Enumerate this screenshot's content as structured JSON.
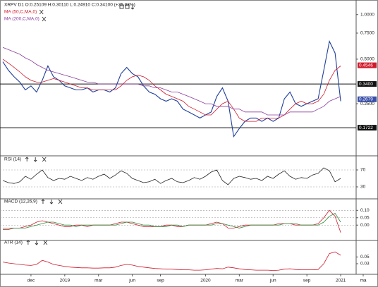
{
  "chart_data": [
    {
      "type": "line",
      "title": "XRPV D1 O:0.25109 H:0.30110 L:0.24910 C:0.34100 (+35.08%)",
      "log_scale": true,
      "ylim": [
        0.12,
        1.15
      ],
      "yticks": [
        {
          "value": 1,
          "label": "1.0000"
        },
        {
          "value": 0.75,
          "label": "0.7500"
        },
        {
          "value": 0.5,
          "label": "0.5000"
        },
        {
          "value": 0.25,
          "label": "0.2500"
        }
      ],
      "grid": false,
      "levels": [
        {
          "value": 0.34,
          "label": "0.3400"
        },
        {
          "value": 0.1722,
          "label": "0.1722"
        }
      ],
      "tags": [
        {
          "value": 0.4546,
          "label": "0.4546"
        },
        {
          "value": 0.2679,
          "label": "0.2679"
        }
      ],
      "tag_colors": [
        "#d0192b",
        "#3a4fa8"
      ],
      "series": [
        {
          "color": "#1f3f9a",
          "values": [
            0.48,
            0.42,
            0.38,
            0.35,
            0.31,
            0.33,
            0.3,
            0.36,
            0.45,
            0.38,
            0.36,
            0.33,
            0.32,
            0.31,
            0.31,
            0.32,
            0.3,
            0.31,
            0.31,
            0.3,
            0.32,
            0.4,
            0.44,
            0.4,
            0.38,
            0.33,
            0.3,
            0.29,
            0.27,
            0.26,
            0.27,
            0.26,
            0.23,
            0.22,
            0.21,
            0.2,
            0.21,
            0.22,
            0.28,
            0.32,
            0.26,
            0.15,
            0.17,
            0.19,
            0.2,
            0.2,
            0.19,
            0.2,
            0.19,
            0.2,
            0.27,
            0.3,
            0.25,
            0.24,
            0.25,
            0.26,
            0.27,
            0.42,
            0.66,
            0.55,
            0.26,
            null,
            null,
            null,
            null
          ]
        },
        {
          "name": "MA (50,C,MA,0)",
          "color": "#d0192b",
          "values": [
            0.5,
            0.47,
            0.44,
            0.41,
            0.38,
            0.36,
            0.35,
            0.35,
            0.36,
            0.37,
            0.36,
            0.35,
            0.34,
            0.33,
            0.32,
            0.32,
            0.31,
            0.31,
            0.31,
            0.31,
            0.31,
            0.33,
            0.36,
            0.38,
            0.39,
            0.38,
            0.36,
            0.33,
            0.31,
            0.29,
            0.28,
            0.27,
            0.26,
            0.24,
            0.23,
            0.22,
            0.21,
            0.21,
            0.23,
            0.25,
            0.26,
            0.23,
            0.2,
            0.19,
            0.19,
            0.19,
            0.2,
            0.2,
            0.2,
            0.2,
            0.21,
            0.23,
            0.25,
            0.26,
            0.25,
            0.25,
            0.26,
            0.29,
            0.36,
            0.42,
            0.45,
            null,
            null,
            null,
            null
          ]
        },
        {
          "name": "MA (200,C,MA,0)",
          "color": "#8a3c9e",
          "values": [
            0.6,
            0.58,
            0.56,
            0.54,
            0.51,
            0.49,
            0.46,
            0.44,
            0.42,
            0.41,
            0.4,
            0.39,
            0.38,
            0.37,
            0.36,
            0.35,
            0.35,
            0.34,
            0.34,
            0.34,
            0.34,
            0.34,
            0.34,
            0.34,
            0.34,
            0.33,
            0.33,
            0.32,
            0.32,
            0.31,
            0.3,
            0.3,
            0.29,
            0.28,
            0.27,
            0.26,
            0.25,
            0.25,
            0.24,
            0.24,
            0.24,
            0.23,
            0.23,
            0.22,
            0.22,
            0.22,
            0.22,
            0.21,
            0.21,
            0.21,
            0.21,
            0.22,
            0.22,
            0.22,
            0.22,
            0.22,
            0.23,
            0.24,
            0.26,
            0.27,
            0.28,
            null,
            null,
            null,
            null
          ]
        }
      ]
    },
    {
      "type": "line",
      "title": "RSI (14)",
      "ylim": [
        15,
        85
      ],
      "yticks": [
        30,
        70
      ],
      "grid": true,
      "series": [
        {
          "color": "#222222",
          "values": [
            45,
            40,
            38,
            42,
            55,
            48,
            60,
            70,
            52,
            45,
            50,
            48,
            55,
            50,
            45,
            52,
            48,
            55,
            60,
            50,
            58,
            68,
            62,
            50,
            45,
            40,
            42,
            48,
            38,
            45,
            50,
            42,
            40,
            45,
            52,
            48,
            55,
            65,
            70,
            45,
            35,
            50,
            55,
            52,
            48,
            50,
            45,
            55,
            50,
            60,
            68,
            55,
            48,
            52,
            50,
            58,
            62,
            75,
            68,
            42,
            50,
            null,
            null,
            null,
            null
          ]
        }
      ]
    },
    {
      "type": "line",
      "title": "MACD (12,26,9)",
      "ylim": [
        -0.08,
        0.13
      ],
      "yticks": [
        {
          "value": 0.1,
          "label": "0.10"
        },
        {
          "value": 0.05,
          "label": "0.05"
        },
        {
          "value": 0,
          "label": "0.00"
        }
      ],
      "grid": true,
      "series": [
        {
          "color": "#d0192b",
          "values": [
            -0.03,
            -0.03,
            -0.02,
            -0.02,
            -0.01,
            0,
            0.02,
            0.03,
            0.02,
            0.01,
            0,
            -0.01,
            -0.01,
            0,
            0,
            -0.01,
            0,
            0,
            0,
            0,
            0.01,
            0.02,
            0.02,
            0.01,
            0,
            -0.01,
            -0.01,
            -0.01,
            -0.01,
            0,
            0,
            -0.01,
            -0.01,
            0,
            0,
            0,
            0,
            0.01,
            0.02,
            0.01,
            -0.02,
            -0.02,
            -0.01,
            0,
            0,
            0,
            0,
            0,
            0,
            0.01,
            0.01,
            0.01,
            0,
            0,
            0,
            0,
            0.01,
            0.05,
            0.1,
            0.06,
            -0.05,
            null,
            null,
            null,
            null
          ]
        },
        {
          "color": "#2e8b3a",
          "values": [
            -0.02,
            -0.02,
            -0.02,
            -0.02,
            -0.02,
            -0.01,
            0,
            0.01,
            0.02,
            0.02,
            0.01,
            0,
            0,
            -0.01,
            0,
            0,
            0,
            0,
            0,
            0,
            0,
            0.01,
            0.02,
            0.02,
            0.01,
            0,
            0,
            -0.01,
            -0.01,
            -0.01,
            0,
            0,
            -0.01,
            0,
            0,
            0,
            0,
            0,
            0.01,
            0.01,
            0,
            -0.01,
            -0.02,
            -0.01,
            0,
            0,
            0,
            0,
            0,
            0,
            0.01,
            0.01,
            0.01,
            0,
            0,
            0,
            0,
            0.02,
            0.06,
            0.08,
            0.02,
            null,
            null,
            null,
            null
          ]
        }
      ]
    },
    {
      "type": "line",
      "title": "ATR (14)",
      "ylim": [
        0.005,
        0.08
      ],
      "yticks": [
        {
          "value": 0.05,
          "label": "0.05"
        },
        {
          "value": 0.03,
          "label": "0.03"
        }
      ],
      "grid": false,
      "categories": [
        null,
        null,
        null,
        null,
        null,
        "dec",
        null,
        null,
        null,
        null,
        null,
        "2019",
        null,
        null,
        null,
        null,
        null,
        "mar",
        null,
        null,
        null,
        null,
        null,
        "jun",
        null,
        null,
        null,
        null,
        "sep",
        null,
        null,
        null,
        null,
        null,
        null,
        null,
        "2020",
        null,
        null,
        null,
        null,
        null,
        "mar",
        null,
        null,
        null,
        null,
        null,
        "jun",
        null,
        null,
        null,
        null,
        null,
        "sep",
        null,
        null,
        null,
        null,
        null,
        "2021",
        null,
        null,
        null,
        "ma"
      ],
      "series": [
        {
          "color": "#d0192b",
          "values": [
            0.035,
            0.032,
            0.03,
            0.028,
            0.026,
            0.025,
            0.028,
            0.04,
            0.035,
            0.028,
            0.025,
            0.022,
            0.02,
            0.019,
            0.018,
            0.018,
            0.017,
            0.017,
            0.018,
            0.018,
            0.02,
            0.025,
            0.028,
            0.026,
            0.022,
            0.02,
            0.018,
            0.016,
            0.015,
            0.014,
            0.014,
            0.013,
            0.012,
            0.012,
            0.011,
            0.011,
            0.012,
            0.014,
            0.016,
            0.015,
            0.02,
            0.018,
            0.015,
            0.013,
            0.012,
            0.011,
            0.011,
            0.011,
            0.01,
            0.011,
            0.014,
            0.015,
            0.013,
            0.012,
            0.012,
            0.012,
            0.013,
            0.03,
            0.06,
            0.065,
            0.055,
            null,
            null,
            null,
            null
          ]
        }
      ]
    }
  ]
}
